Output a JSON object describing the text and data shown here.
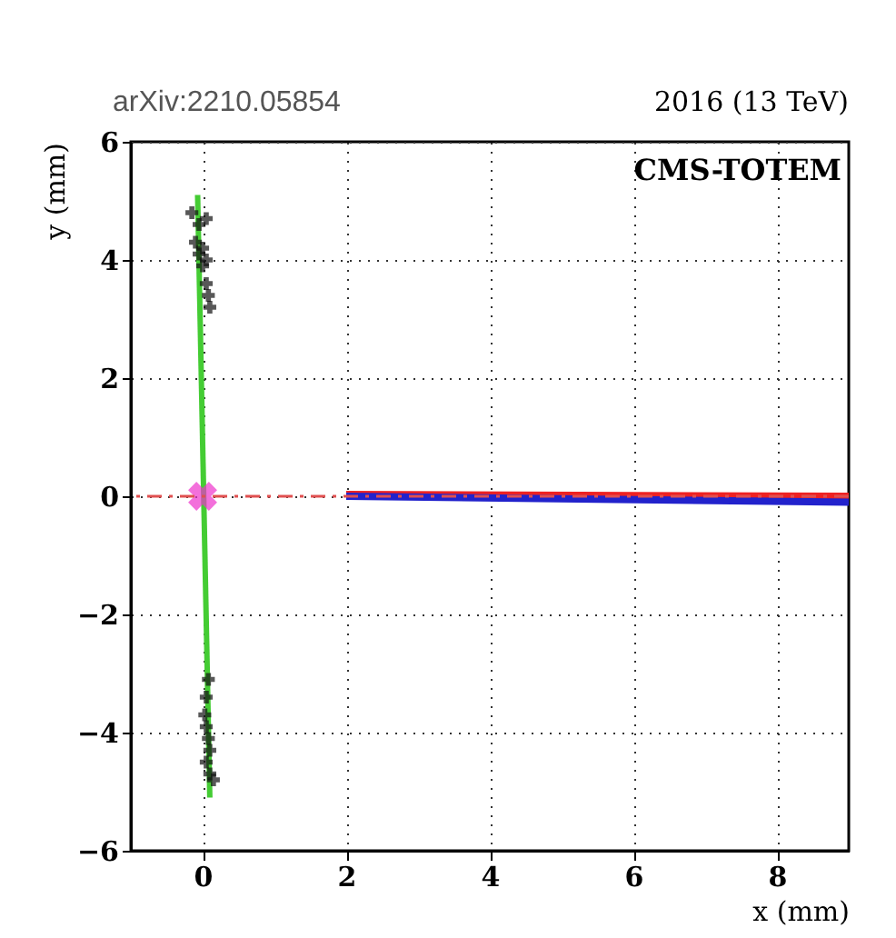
{
  "chart_data": {
    "type": "line",
    "xlabel": "x (mm)",
    "ylabel": "y (mm)",
    "annotations": [
      "arXiv:2210.05854",
      "2016 (13 TeV)",
      "CMS-TOTEM"
    ],
    "xlim": [
      -1,
      9
    ],
    "ylim": [
      -6,
      6
    ],
    "xticks": [
      0,
      2,
      4,
      6,
      8
    ],
    "yticks": [
      -6,
      -4,
      -2,
      0,
      2,
      4,
      6
    ],
    "grid": true,
    "ref_lines": [
      {
        "axis": "y",
        "value": 0,
        "color": "#e05050",
        "line_style": "dashed"
      }
    ],
    "series": [
      {
        "color": "#44cc33",
        "x": [
          -0.07,
          0.1
        ],
        "values": [
          5.1,
          -5.1
        ]
      },
      {
        "type": "scatter",
        "marker": "cross",
        "color": "#111111",
        "x": [
          -0.15,
          -0.05,
          0.05,
          -0.1,
          0.0,
          -0.05,
          0.05,
          0.0,
          0.05,
          0.08,
          0.1,
          0.08,
          0.05,
          0.03,
          0.05,
          0.08,
          0.1,
          0.05,
          0.1,
          0.15
        ],
        "values": [
          4.8,
          4.6,
          4.7,
          4.3,
          4.2,
          4.1,
          4.0,
          3.9,
          3.6,
          3.4,
          3.2,
          -3.1,
          -3.4,
          -3.7,
          -3.9,
          -4.1,
          -4.3,
          -4.5,
          -4.7,
          -4.8
        ]
      },
      {
        "color": "#ee2222",
        "x": [
          2,
          9
        ],
        "values": [
          0.03,
          0.0
        ]
      },
      {
        "color": "#2222cc",
        "x": [
          2,
          9
        ],
        "values": [
          0.0,
          -0.1
        ]
      },
      {
        "type": "scatter",
        "marker": "x",
        "color": "#ee33cc",
        "x": [
          0
        ],
        "values": [
          0
        ]
      }
    ]
  }
}
